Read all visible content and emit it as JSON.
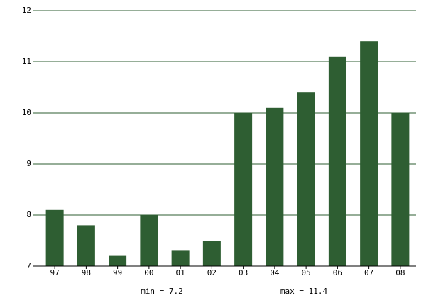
{
  "chart_data": {
    "type": "bar",
    "categories": [
      "97",
      "98",
      "99",
      "00",
      "01",
      "02",
      "03",
      "04",
      "05",
      "06",
      "07",
      "08"
    ],
    "values": [
      8.1,
      7.8,
      7.2,
      8.0,
      7.3,
      7.5,
      10.0,
      10.1,
      10.4,
      11.1,
      11.4,
      10.0
    ],
    "color": "#2e5e32",
    "ylim": [
      7,
      12
    ],
    "yticks": [
      7,
      8,
      9,
      10,
      11,
      12
    ],
    "grid": true,
    "annotations": [
      "min = 7.2",
      "max = 11.4"
    ]
  }
}
